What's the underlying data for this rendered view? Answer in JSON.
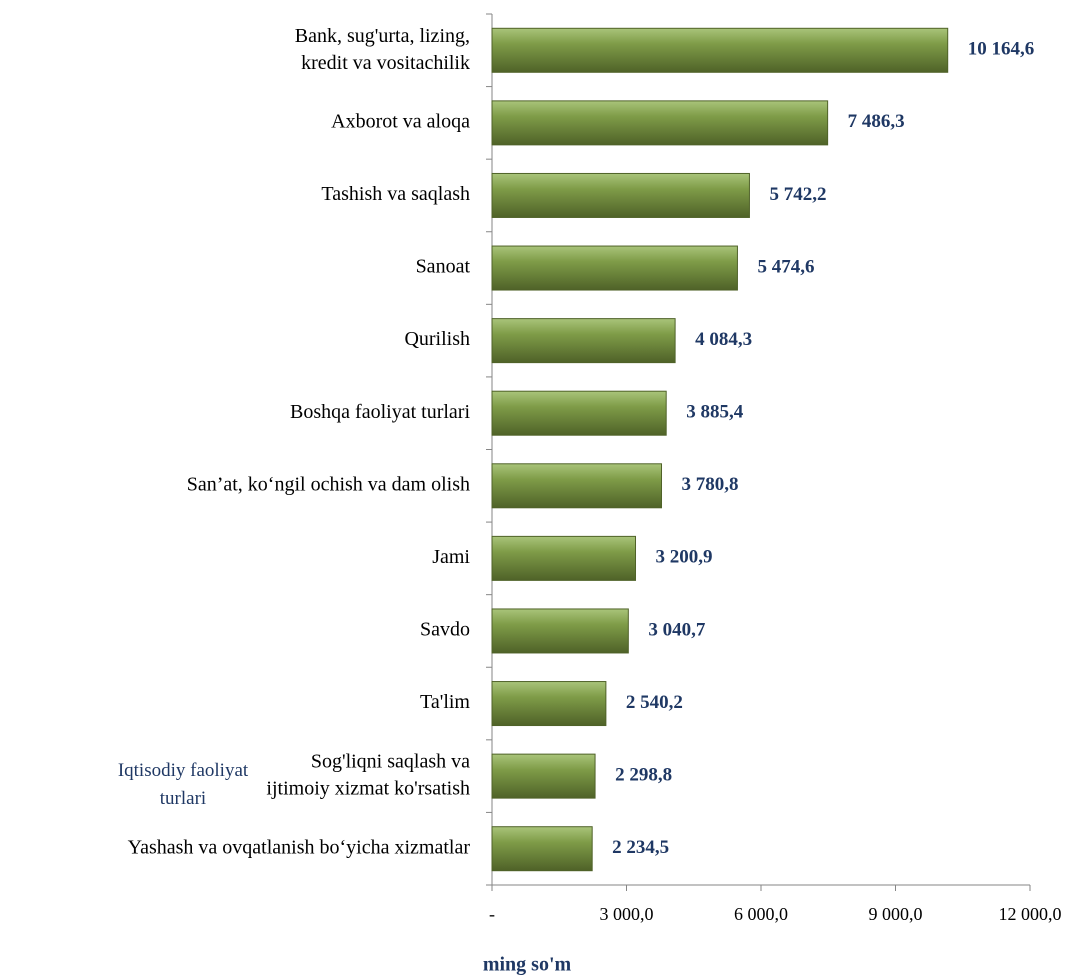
{
  "chart_data": {
    "type": "bar",
    "orientation": "horizontal",
    "categories": [
      "Bank, sug'urta,  lizing,\nkredit va vositachilik",
      "Axborot va aloqa",
      "Tashish va saqlash",
      "Sanoat",
      "Qurilish",
      "Boshqa faoliyat turlari",
      "San’at, ko‘ngil ochish va dam olish",
      "Jami",
      "Savdo",
      "Ta'lim",
      "Sog'liqni saqlash va\nijtimoiy xizmat ko'rsatish",
      "Yashash va ovqatlanish bo‘yicha xizmatlar"
    ],
    "values": [
      10164.6,
      7486.3,
      5742.2,
      5474.6,
      4084.3,
      3885.4,
      3780.8,
      3200.9,
      3040.7,
      2540.2,
      2298.8,
      2234.5
    ],
    "value_labels": [
      "10 164,6",
      "7 486,3",
      "5 742,2",
      "5 474,6",
      "4 084,3",
      "3 885,4",
      "3 780,8",
      "3 200,9",
      "3 040,7",
      "2 540,2",
      "2 298,8",
      "2 234,5"
    ],
    "color": "#77933c",
    "xlim": [
      0,
      12000
    ],
    "xticks": [
      {
        "value": 0,
        "label": "-"
      },
      {
        "value": 3000,
        "label": "3 000,0"
      },
      {
        "value": 6000,
        "label": "6 000,0"
      },
      {
        "value": 9000,
        "label": "9 000,0"
      },
      {
        "value": 12000,
        "label": "12 000,0"
      }
    ],
    "xlabel": "ming so'm",
    "ylabel": "Iqtisodiy faoliyat\nturlari"
  }
}
